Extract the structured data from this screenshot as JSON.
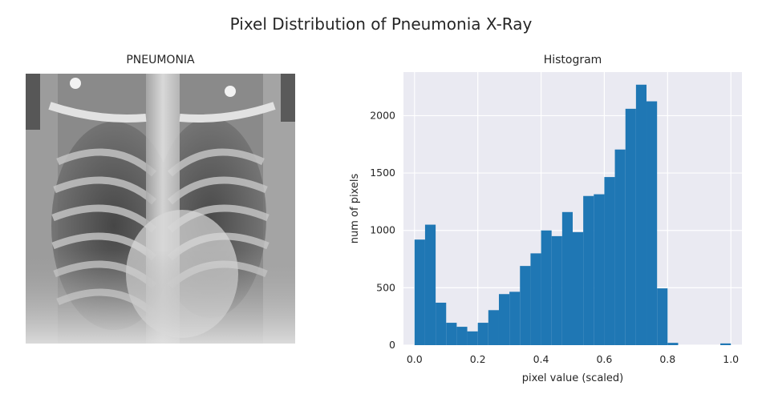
{
  "figure": {
    "title": "Pixel Distribution of Pneumonia X-Ray"
  },
  "xray": {
    "title": "PNEUMONIA"
  },
  "chart_data": {
    "type": "bar",
    "title": "Histogram",
    "xlabel": "pixel value (scaled)",
    "ylabel": "num of pixels",
    "xlim": [
      -0.035,
      1.035
    ],
    "ylim": [
      0,
      2380
    ],
    "xticks": [
      0.0,
      0.2,
      0.4,
      0.6,
      0.8,
      1.0
    ],
    "xtick_labels": [
      "0.0",
      "0.2",
      "0.4",
      "0.6",
      "0.8",
      "1.0"
    ],
    "yticks": [
      0,
      500,
      1000,
      1500,
      2000
    ],
    "ytick_labels": [
      "0",
      "500",
      "1000",
      "1500",
      "2000"
    ],
    "grid": true,
    "background": "#eaeaf2",
    "bar_color": "#1f77b4",
    "bin_edges": [
      0.0,
      0.0333,
      0.0667,
      0.1,
      0.1333,
      0.1667,
      0.2,
      0.2333,
      0.2667,
      0.3,
      0.3333,
      0.3667,
      0.4,
      0.4333,
      0.4667,
      0.5,
      0.5333,
      0.5667,
      0.6,
      0.6333,
      0.6667,
      0.7,
      0.7333,
      0.7667,
      0.8,
      0.8333,
      0.8667,
      0.9,
      0.9333,
      0.9667,
      1.0
    ],
    "values": [
      920,
      1050,
      370,
      195,
      160,
      120,
      195,
      305,
      445,
      465,
      690,
      800,
      1000,
      950,
      1160,
      985,
      1300,
      1315,
      1465,
      1705,
      2060,
      2270,
      2125,
      495,
      20,
      0,
      0,
      0,
      0,
      15
    ]
  }
}
